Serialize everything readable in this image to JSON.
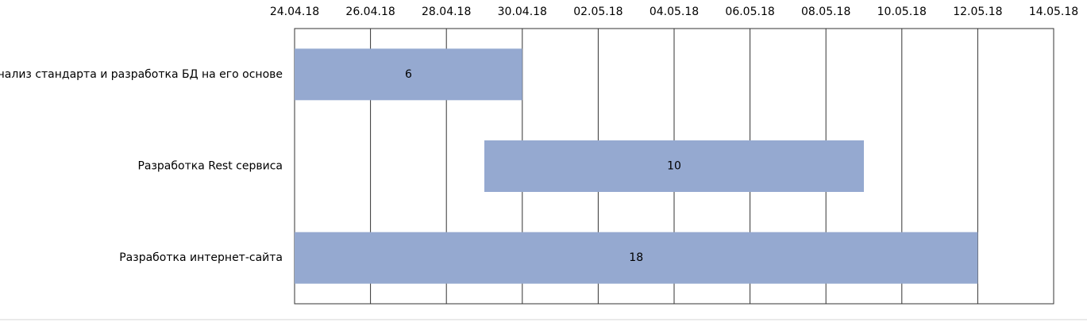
{
  "chart_data": {
    "type": "gantt",
    "categories": [
      "Анализ стандарта и разработка БД на его основе",
      "Разработка Rest сервиса",
      "Разработка интернет-сайта"
    ],
    "starts": [
      "24.04.18",
      "29.04.18",
      "24.04.18"
    ],
    "values": [
      6,
      10,
      18
    ],
    "color": "#95a9d0",
    "xlim": [
      "24.04.18",
      "14.05.18"
    ],
    "xticks": [
      "24.04.18",
      "26.04.18",
      "28.04.18",
      "30.04.18",
      "02.05.18",
      "04.05.18",
      "06.05.18",
      "08.05.18",
      "10.05.18",
      "12.05.18",
      "14.05.18"
    ],
    "grid": true
  }
}
